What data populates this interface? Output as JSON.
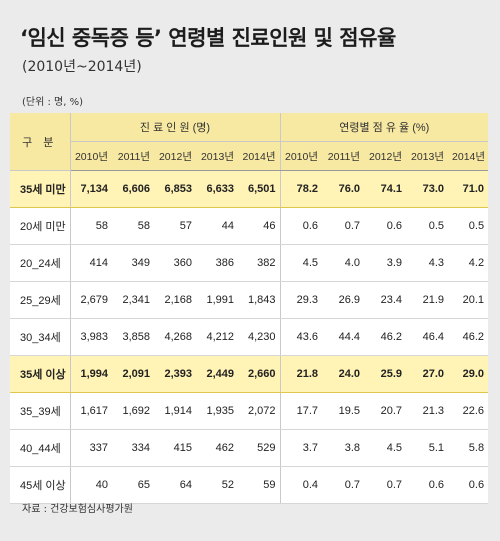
{
  "title": "‘임신 중독증 등’ 연령별 진료인원 및 점유율",
  "subtitle": "(2010년~2014년)",
  "unit_note": "(단위 : 명, %)",
  "source": "자료 : 건강보험심사평가원",
  "chart_data": {
    "type": "table",
    "row_header": "구 분",
    "groups": [
      {
        "name": "진 료 인 원 (명)",
        "years": [
          "2010년",
          "2011년",
          "2012년",
          "2013년",
          "2014년"
        ]
      },
      {
        "name": "연령별 점 유 율 (%)",
        "years": [
          "2010년",
          "2011년",
          "2012년",
          "2013년",
          "2014년"
        ]
      }
    ],
    "rows": [
      {
        "label": "35세 미만",
        "highlight": true,
        "patients": [
          "7,134",
          "6,606",
          "6,853",
          "6,633",
          "6,501"
        ],
        "share": [
          "78.2",
          "76.0",
          "74.1",
          "73.0",
          "71.0"
        ]
      },
      {
        "label": "20세 미만",
        "highlight": false,
        "patients": [
          "58",
          "58",
          "57",
          "44",
          "46"
        ],
        "share": [
          "0.6",
          "0.7",
          "0.6",
          "0.5",
          "0.5"
        ]
      },
      {
        "label": "20_24세",
        "highlight": false,
        "patients": [
          "414",
          "349",
          "360",
          "386",
          "382"
        ],
        "share": [
          "4.5",
          "4.0",
          "3.9",
          "4.3",
          "4.2"
        ]
      },
      {
        "label": "25_29세",
        "highlight": false,
        "patients": [
          "2,679",
          "2,341",
          "2,168",
          "1,991",
          "1,843"
        ],
        "share": [
          "29.3",
          "26.9",
          "23.4",
          "21.9",
          "20.1"
        ]
      },
      {
        "label": "30_34세",
        "highlight": false,
        "patients": [
          "3,983",
          "3,858",
          "4,268",
          "4,212",
          "4,230"
        ],
        "share": [
          "43.6",
          "44.4",
          "46.2",
          "46.4",
          "46.2"
        ]
      },
      {
        "label": "35세 이상",
        "highlight": true,
        "patients": [
          "1,994",
          "2,091",
          "2,393",
          "2,449",
          "2,660"
        ],
        "share": [
          "21.8",
          "24.0",
          "25.9",
          "27.0",
          "29.0"
        ]
      },
      {
        "label": "35_39세",
        "highlight": false,
        "patients": [
          "1,617",
          "1,692",
          "1,914",
          "1,935",
          "2,072"
        ],
        "share": [
          "17.7",
          "19.5",
          "20.7",
          "21.3",
          "22.6"
        ]
      },
      {
        "label": "40_44세",
        "highlight": false,
        "patients": [
          "337",
          "334",
          "415",
          "462",
          "529"
        ],
        "share": [
          "3.7",
          "3.8",
          "4.5",
          "5.1",
          "5.8"
        ]
      },
      {
        "label": "45세 이상",
        "highlight": false,
        "patients": [
          "40",
          "65",
          "64",
          "52",
          "59"
        ],
        "share": [
          "0.4",
          "0.7",
          "0.7",
          "0.6",
          "0.6"
        ]
      }
    ]
  },
  "colors": {
    "header_bg": "#f8e9a2",
    "highlight_bg": "#fff3b6",
    "page_bg": "#ebebeb"
  }
}
